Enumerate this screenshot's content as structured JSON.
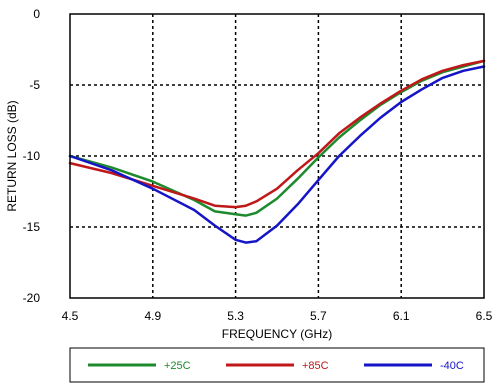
{
  "chart_data": {
    "type": "line",
    "title": "",
    "xlabel": "FREQUENCY (GHz)",
    "ylabel": "RETURN LOSS (dB)",
    "xlim": [
      4.5,
      6.5
    ],
    "ylim": [
      -20,
      0
    ],
    "xticks": [
      "4.5",
      "4.9",
      "5.3",
      "5.7",
      "6.1",
      "6.5"
    ],
    "yticks": [
      "0",
      "-5",
      "-10",
      "-15",
      "-20"
    ],
    "xtick_values": [
      4.5,
      4.9,
      5.3,
      5.7,
      6.1,
      6.5
    ],
    "ytick_values": [
      0,
      -5,
      -10,
      -15,
      -20
    ],
    "grid": "dotted",
    "legend_position": "bottom",
    "series": [
      {
        "name": "+25C",
        "color": "#1e8a2e",
        "x": [
          4.5,
          4.7,
          4.9,
          5.1,
          5.2,
          5.3,
          5.35,
          5.4,
          5.5,
          5.6,
          5.7,
          5.8,
          5.9,
          6.0,
          6.1,
          6.2,
          6.3,
          6.4,
          6.5
        ],
        "y": [
          -10.0,
          -10.8,
          -11.8,
          -13.1,
          -13.9,
          -14.1,
          -14.2,
          -14.0,
          -13.0,
          -11.6,
          -10.1,
          -8.7,
          -7.5,
          -6.4,
          -5.5,
          -4.7,
          -4.1,
          -3.7,
          -3.3
        ]
      },
      {
        "name": "+85C",
        "color": "#c01818",
        "x": [
          4.5,
          4.7,
          4.9,
          5.1,
          5.2,
          5.3,
          5.35,
          5.4,
          5.5,
          5.6,
          5.7,
          5.8,
          5.9,
          6.0,
          6.1,
          6.2,
          6.3,
          6.4,
          6.5
        ],
        "y": [
          -10.5,
          -11.2,
          -12.1,
          -13.0,
          -13.5,
          -13.6,
          -13.5,
          -13.2,
          -12.3,
          -11.0,
          -9.8,
          -8.4,
          -7.3,
          -6.3,
          -5.4,
          -4.6,
          -4.0,
          -3.6,
          -3.3
        ]
      },
      {
        "name": "-40C",
        "color": "#1515c8",
        "x": [
          4.5,
          4.7,
          4.9,
          5.1,
          5.2,
          5.3,
          5.35,
          5.4,
          5.5,
          5.6,
          5.7,
          5.8,
          5.9,
          6.0,
          6.1,
          6.2,
          6.3,
          6.4,
          6.5
        ],
        "y": [
          -10.0,
          -11.0,
          -12.3,
          -13.8,
          -14.9,
          -15.9,
          -16.1,
          -16.0,
          -14.9,
          -13.4,
          -11.7,
          -10.0,
          -8.6,
          -7.3,
          -6.2,
          -5.3,
          -4.5,
          -4.0,
          -3.7
        ]
      }
    ]
  }
}
